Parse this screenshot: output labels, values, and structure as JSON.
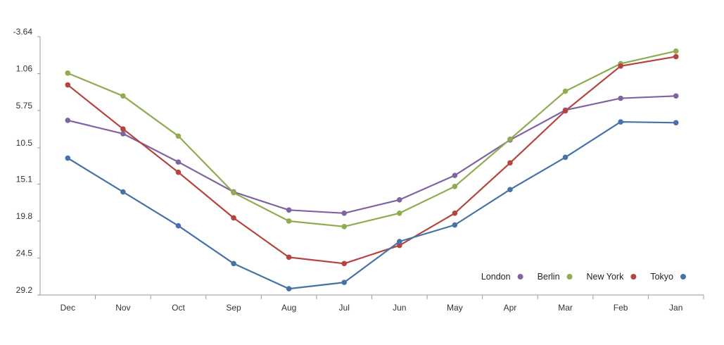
{
  "chart_data": {
    "type": "line",
    "y_reversed": true,
    "ylim": [
      -3.64,
      29.2
    ],
    "y_ticks": [
      -3.64,
      1.06,
      5.75,
      10.5,
      15.1,
      19.8,
      24.5,
      29.2
    ],
    "y_tick_labels": [
      "-3.64",
      "1.06",
      "5.75",
      "10.5",
      "15.1",
      "19.8",
      "24.5",
      "29.2"
    ],
    "categories": [
      "Dec",
      "Nov",
      "Oct",
      "Sep",
      "Aug",
      "Jul",
      "Jun",
      "May",
      "Apr",
      "Mar",
      "Feb",
      "Jan"
    ],
    "legend_position": "bottom-right",
    "grid": false,
    "series": [
      {
        "name": "London",
        "color": "#8064a2",
        "values": [
          7.0,
          8.7,
          12.3,
          16.1,
          18.4,
          18.8,
          17.1,
          14.0,
          9.5,
          5.7,
          4.2,
          3.9
        ]
      },
      {
        "name": "Berlin",
        "color": "#8fac4f",
        "values": [
          1.0,
          3.9,
          9.0,
          16.2,
          19.8,
          20.5,
          18.8,
          15.4,
          9.4,
          3.3,
          -0.2,
          -1.8
        ]
      },
      {
        "name": "New York",
        "color": "#b5433f",
        "values": [
          2.5,
          8.1,
          13.6,
          19.4,
          24.4,
          25.2,
          22.9,
          18.8,
          12.4,
          5.8,
          0.1,
          -1.1
        ]
      },
      {
        "name": "Tokyo",
        "color": "#4572a7",
        "values": [
          11.8,
          16.1,
          20.4,
          25.2,
          28.4,
          27.6,
          22.4,
          20.3,
          15.8,
          11.7,
          7.2,
          7.3
        ]
      }
    ]
  }
}
